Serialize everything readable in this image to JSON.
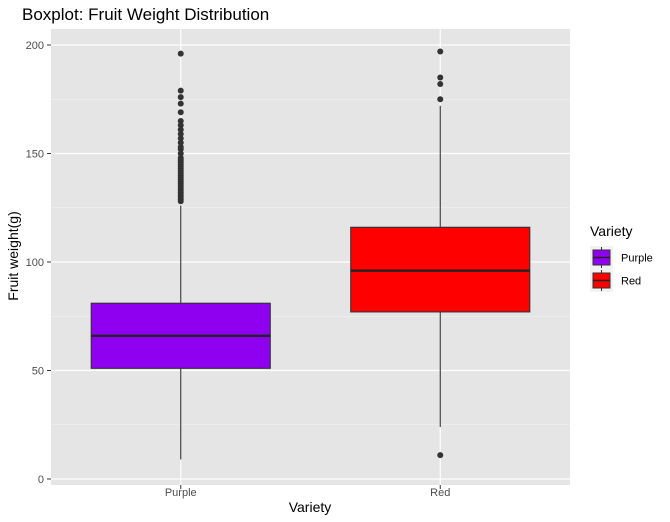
{
  "chart_data": {
    "type": "boxplot",
    "title": "Boxplot: Fruit Weight Distribution",
    "xlabel": "Variety",
    "ylabel": "Fruit weight(g)",
    "ylim": [
      0,
      200
    ],
    "yticks": [
      0,
      50,
      100,
      150,
      200
    ],
    "categories": [
      "Purple",
      "Red"
    ],
    "grid": true,
    "legend": {
      "title": "Variety",
      "placement": "right",
      "entries": [
        {
          "label": "Purple",
          "color": "#8f00f0"
        },
        {
          "label": "Red",
          "color": "#ff0000"
        }
      ]
    },
    "series": [
      {
        "category": "Purple",
        "color": "#8f00f0",
        "whisker_low": 9,
        "q1": 51,
        "median": 66,
        "q3": 81,
        "whisker_high": 126,
        "outliers": [
          128,
          129,
          130,
          131,
          132,
          133,
          134,
          135,
          136,
          137,
          138,
          139,
          140,
          141,
          142,
          143,
          144,
          145,
          146,
          147,
          148,
          150,
          152,
          153,
          155,
          157,
          159,
          161,
          163,
          165,
          169,
          173,
          176,
          179,
          196
        ]
      },
      {
        "category": "Red",
        "color": "#ff0000",
        "whisker_low": 24,
        "q1": 77,
        "median": 96,
        "q3": 116,
        "whisker_high": 172,
        "outliers": [
          11,
          175,
          182,
          185,
          197
        ]
      }
    ]
  }
}
